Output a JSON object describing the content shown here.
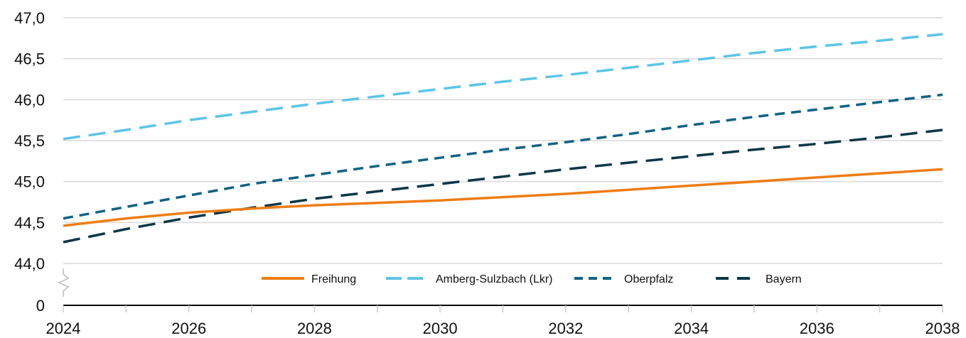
{
  "chart_data": {
    "type": "line",
    "title": "",
    "xlabel": "",
    "ylabel": "",
    "x": [
      2024,
      2025,
      2026,
      2027,
      2028,
      2029,
      2030,
      2031,
      2032,
      2033,
      2034,
      2035,
      2036,
      2037,
      2038
    ],
    "x_ticks": [
      "2024",
      "2026",
      "2028",
      "2030",
      "2032",
      "2034",
      "2036",
      "2038"
    ],
    "y_ticks": [
      "0",
      "44,0",
      "44,5",
      "45,0",
      "45,5",
      "46,0",
      "46,5",
      "47,0"
    ],
    "ylim": [
      44.0,
      47.0
    ],
    "y_axis_break": true,
    "grid": "horizontal",
    "legend_position": "bottom-center",
    "series": [
      {
        "name": "Freihung",
        "color": "#EE7D11",
        "style": "solid",
        "values": [
          44.46,
          44.55,
          44.62,
          44.67,
          44.71,
          44.74,
          44.77,
          44.81,
          44.85,
          44.9,
          44.95,
          45.0,
          45.05,
          45.1,
          45.15
        ]
      },
      {
        "name": "Amberg-Sulzbach (Lkr)",
        "color": "#5BC5E8",
        "style": "long-dash",
        "values": [
          45.52,
          45.63,
          45.75,
          45.85,
          45.95,
          46.04,
          46.13,
          46.22,
          46.3,
          46.39,
          46.48,
          46.57,
          46.65,
          46.72,
          46.8
        ]
      },
      {
        "name": "Oberpfalz",
        "color": "#0F6385",
        "style": "dash",
        "values": [
          44.55,
          44.69,
          44.83,
          44.97,
          45.08,
          45.19,
          45.29,
          45.39,
          45.48,
          45.58,
          45.69,
          45.79,
          45.88,
          45.97,
          46.06
        ]
      },
      {
        "name": "Bayern",
        "color": "#0B3747",
        "style": "long-dash",
        "values": [
          44.26,
          44.42,
          44.56,
          44.68,
          44.79,
          44.88,
          44.97,
          45.06,
          45.15,
          45.23,
          45.31,
          45.39,
          45.46,
          45.54,
          45.63
        ]
      }
    ]
  }
}
